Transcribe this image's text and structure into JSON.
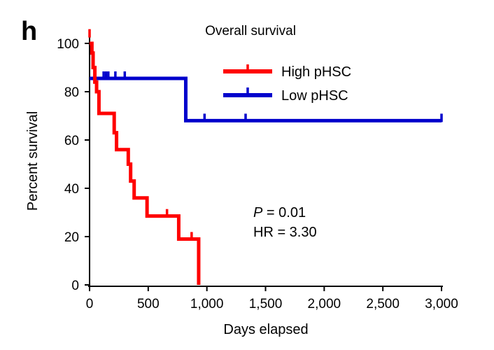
{
  "panel_label": "h",
  "chart_data": {
    "type": "line",
    "subtype": "kaplan-meier",
    "title": "Overall survival",
    "xlabel": "Days elapsed",
    "ylabel": "Percent survival",
    "xlim": [
      0,
      3000
    ],
    "ylim": [
      0,
      100
    ],
    "xticks": [
      0,
      500,
      1000,
      1500,
      2000,
      2500,
      3000
    ],
    "xtick_labels": [
      "0",
      "500",
      "1,000",
      "1,500",
      "2,000",
      "2,500",
      "3,000"
    ],
    "yticks": [
      0,
      20,
      40,
      60,
      80,
      100
    ],
    "ytick_labels": [
      "0",
      "20",
      "40",
      "60",
      "80",
      "100"
    ],
    "grid": false,
    "legend_position": "top-right",
    "series": [
      {
        "name": "High pHSC",
        "color": "#ff0000",
        "steps": [
          [
            0,
            100
          ],
          [
            20,
            96
          ],
          [
            30,
            90
          ],
          [
            45,
            84
          ],
          [
            60,
            80
          ],
          [
            80,
            71
          ],
          [
            190,
            71
          ],
          [
            210,
            63
          ],
          [
            230,
            56
          ],
          [
            300,
            56
          ],
          [
            330,
            50
          ],
          [
            350,
            43
          ],
          [
            380,
            36
          ],
          [
            480,
            36
          ],
          [
            490,
            28.5
          ],
          [
            750,
            28.5
          ],
          [
            760,
            19
          ],
          [
            920,
            19
          ],
          [
            930,
            0
          ]
        ],
        "censored": [
          [
            0,
            103
          ],
          [
            660,
            28.5
          ],
          [
            870,
            19
          ]
        ]
      },
      {
        "name": "Low pHSC",
        "color": "#0000cc",
        "steps": [
          [
            0,
            85.5
          ],
          [
            820,
            85.5
          ],
          [
            820,
            68
          ],
          [
            3000,
            68
          ]
        ],
        "censored": [
          [
            120,
            85.5
          ],
          [
            140,
            85.5
          ],
          [
            160,
            85.5
          ],
          [
            220,
            85.5
          ],
          [
            300,
            85.5
          ],
          [
            980,
            68
          ],
          [
            1330,
            68
          ],
          [
            3000,
            68
          ]
        ]
      }
    ],
    "annotations": [
      {
        "italic": "P",
        "text": " = 0.01"
      },
      {
        "text": "HR = 3.30"
      }
    ]
  }
}
